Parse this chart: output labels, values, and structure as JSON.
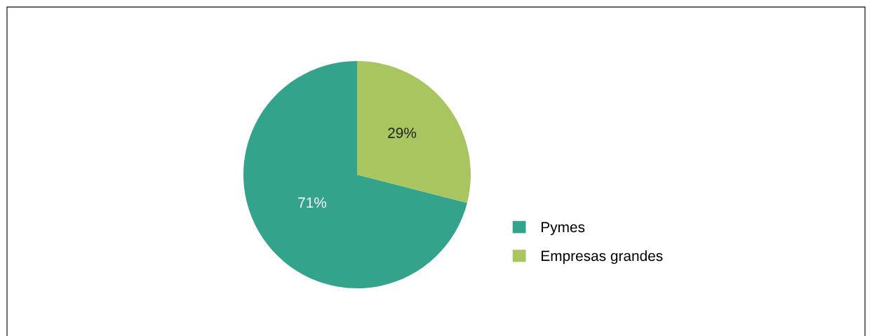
{
  "chart_data": {
    "type": "pie",
    "categories": [
      "Pymes",
      "Empresas grandes"
    ],
    "values": [
      71,
      29
    ],
    "colors": [
      "#34a38b",
      "#a8c560"
    ],
    "value_labels": [
      "71%",
      "29%"
    ],
    "legend": "right"
  }
}
